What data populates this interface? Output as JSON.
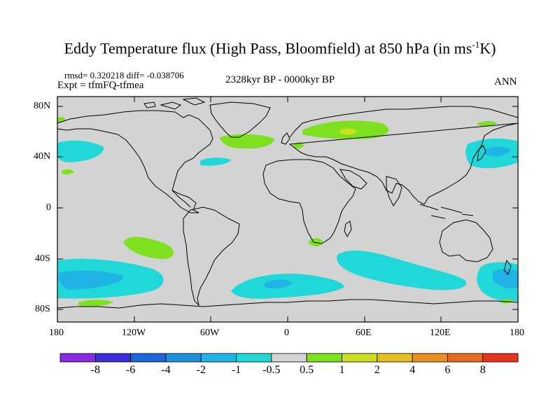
{
  "title": {
    "main": "Eddy Temperature flux (High Pass, Bloomfield) at 850 hPa (in ms",
    "sup": "-1",
    "tail": "K)"
  },
  "stats": {
    "rmsd_diff": "rmsd= 0.320218 diff= -0.038706",
    "expt": "Expt = tfmFQ-tfmea",
    "period": "2328kyr BP - 0000kyr BP",
    "season": "ANN"
  },
  "axes": {
    "lat_labels": [
      "80N",
      "40N",
      "0",
      "40S",
      "80S"
    ],
    "lon_labels": [
      "180",
      "120W",
      "60W",
      "0",
      "60E",
      "120E",
      "180"
    ]
  },
  "colorbar": {
    "labels": [
      "-8",
      "-6",
      "-4",
      "-2",
      "-1",
      "-0.5",
      "0.5",
      "1",
      "2",
      "4",
      "6",
      "8"
    ],
    "colors": [
      "#8a2be2",
      "#3a2fd8",
      "#1e64dc",
      "#1e90e0",
      "#20b4e6",
      "#20d8d8",
      "#d3d3d3",
      "#7fe020",
      "#c8e020",
      "#e6c020",
      "#e6901e",
      "#e66a1e",
      "#e6361e"
    ]
  },
  "map_colors": {
    "land_bg": "#d3d3d3",
    "coast": "#000000",
    "neg_light": "#20d8d8",
    "neg_mid": "#20b4e6",
    "pos_light": "#7fe020",
    "pos_mid": "#c8e020"
  }
}
